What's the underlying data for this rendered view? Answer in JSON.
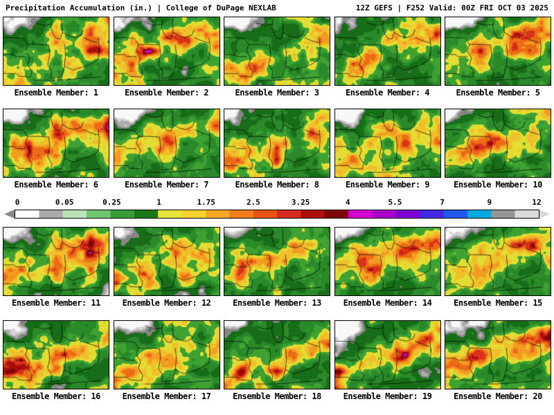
{
  "header": {
    "title": "Precipitation Accumulation (in.) | College of DuPage NEXLAB",
    "model_info": "12Z GEFS | F252 Valid: 00Z FRI OCT 03 2025"
  },
  "panels": [
    {
      "label": "Ensemble Member: 1"
    },
    {
      "label": "Ensemble Member: 2"
    },
    {
      "label": "Ensemble Member: 3"
    },
    {
      "label": "Ensemble Member: 4"
    },
    {
      "label": "Ensemble Member: 5"
    },
    {
      "label": "Ensemble Member: 6"
    },
    {
      "label": "Ensemble Member: 7"
    },
    {
      "label": "Ensemble Member: 8"
    },
    {
      "label": "Ensemble Member: 9"
    },
    {
      "label": "Ensemble Member: 10"
    },
    {
      "label": "Ensemble Member: 11"
    },
    {
      "label": "Ensemble Member: 12"
    },
    {
      "label": "Ensemble Member: 13"
    },
    {
      "label": "Ensemble Member: 14"
    },
    {
      "label": "Ensemble Member: 15"
    },
    {
      "label": "Ensemble Member: 16"
    },
    {
      "label": "Ensemble Member: 17"
    },
    {
      "label": "Ensemble Member: 18"
    },
    {
      "label": "Ensemble Member: 19"
    },
    {
      "label": "Ensemble Member: 20"
    }
  ],
  "colorbar": {
    "ticks": [
      "0",
      "0.05",
      "0.25",
      "1",
      "1.75",
      "2.5",
      "3.25",
      "4",
      "5.5",
      "7",
      "9",
      "12"
    ],
    "cells": [
      "#ffffff",
      "#aaaaaa",
      "#b7e3b7",
      "#6fc46f",
      "#359e35",
      "#1a781a",
      "#e8e23a",
      "#f6d231",
      "#f4a826",
      "#ef7d1a",
      "#e85414",
      "#d62a1c",
      "#ad0f0f",
      "#7d0404",
      "#d402d4",
      "#aa00c8",
      "#7d00d0",
      "#4428e8",
      "#2458f0",
      "#00aadc",
      "#969696",
      "#d9d9d9"
    ],
    "left_arrow_color": "#8c8c8c",
    "right_arrow_color": "#d9d9d9"
  },
  "map_palette": {
    "levels": [
      {
        "t": 0.055,
        "c": "#f8f8f8"
      },
      {
        "t": 0.105,
        "c": "#d4d4d4"
      },
      {
        "t": 0.155,
        "c": "#adadad"
      },
      {
        "t": 0.215,
        "c": "#858585"
      },
      {
        "t": 0.38,
        "c": "#186e18"
      },
      {
        "t": 0.48,
        "c": "#2a8a2a"
      },
      {
        "t": 0.56,
        "c": "#3da232"
      },
      {
        "t": 0.63,
        "c": "#e2dc33"
      },
      {
        "t": 0.69,
        "c": "#f0c02b"
      },
      {
        "t": 0.745,
        "c": "#f39a21"
      },
      {
        "t": 0.8,
        "c": "#ec6b16"
      },
      {
        "t": 0.85,
        "c": "#d93219"
      },
      {
        "t": 0.895,
        "c": "#ab0d0d"
      },
      {
        "t": 0.93,
        "c": "#7b0404"
      },
      {
        "t": 0.965,
        "c": "#d203d2"
      },
      {
        "t": 2.0,
        "c": "#8f00c4"
      }
    ]
  }
}
